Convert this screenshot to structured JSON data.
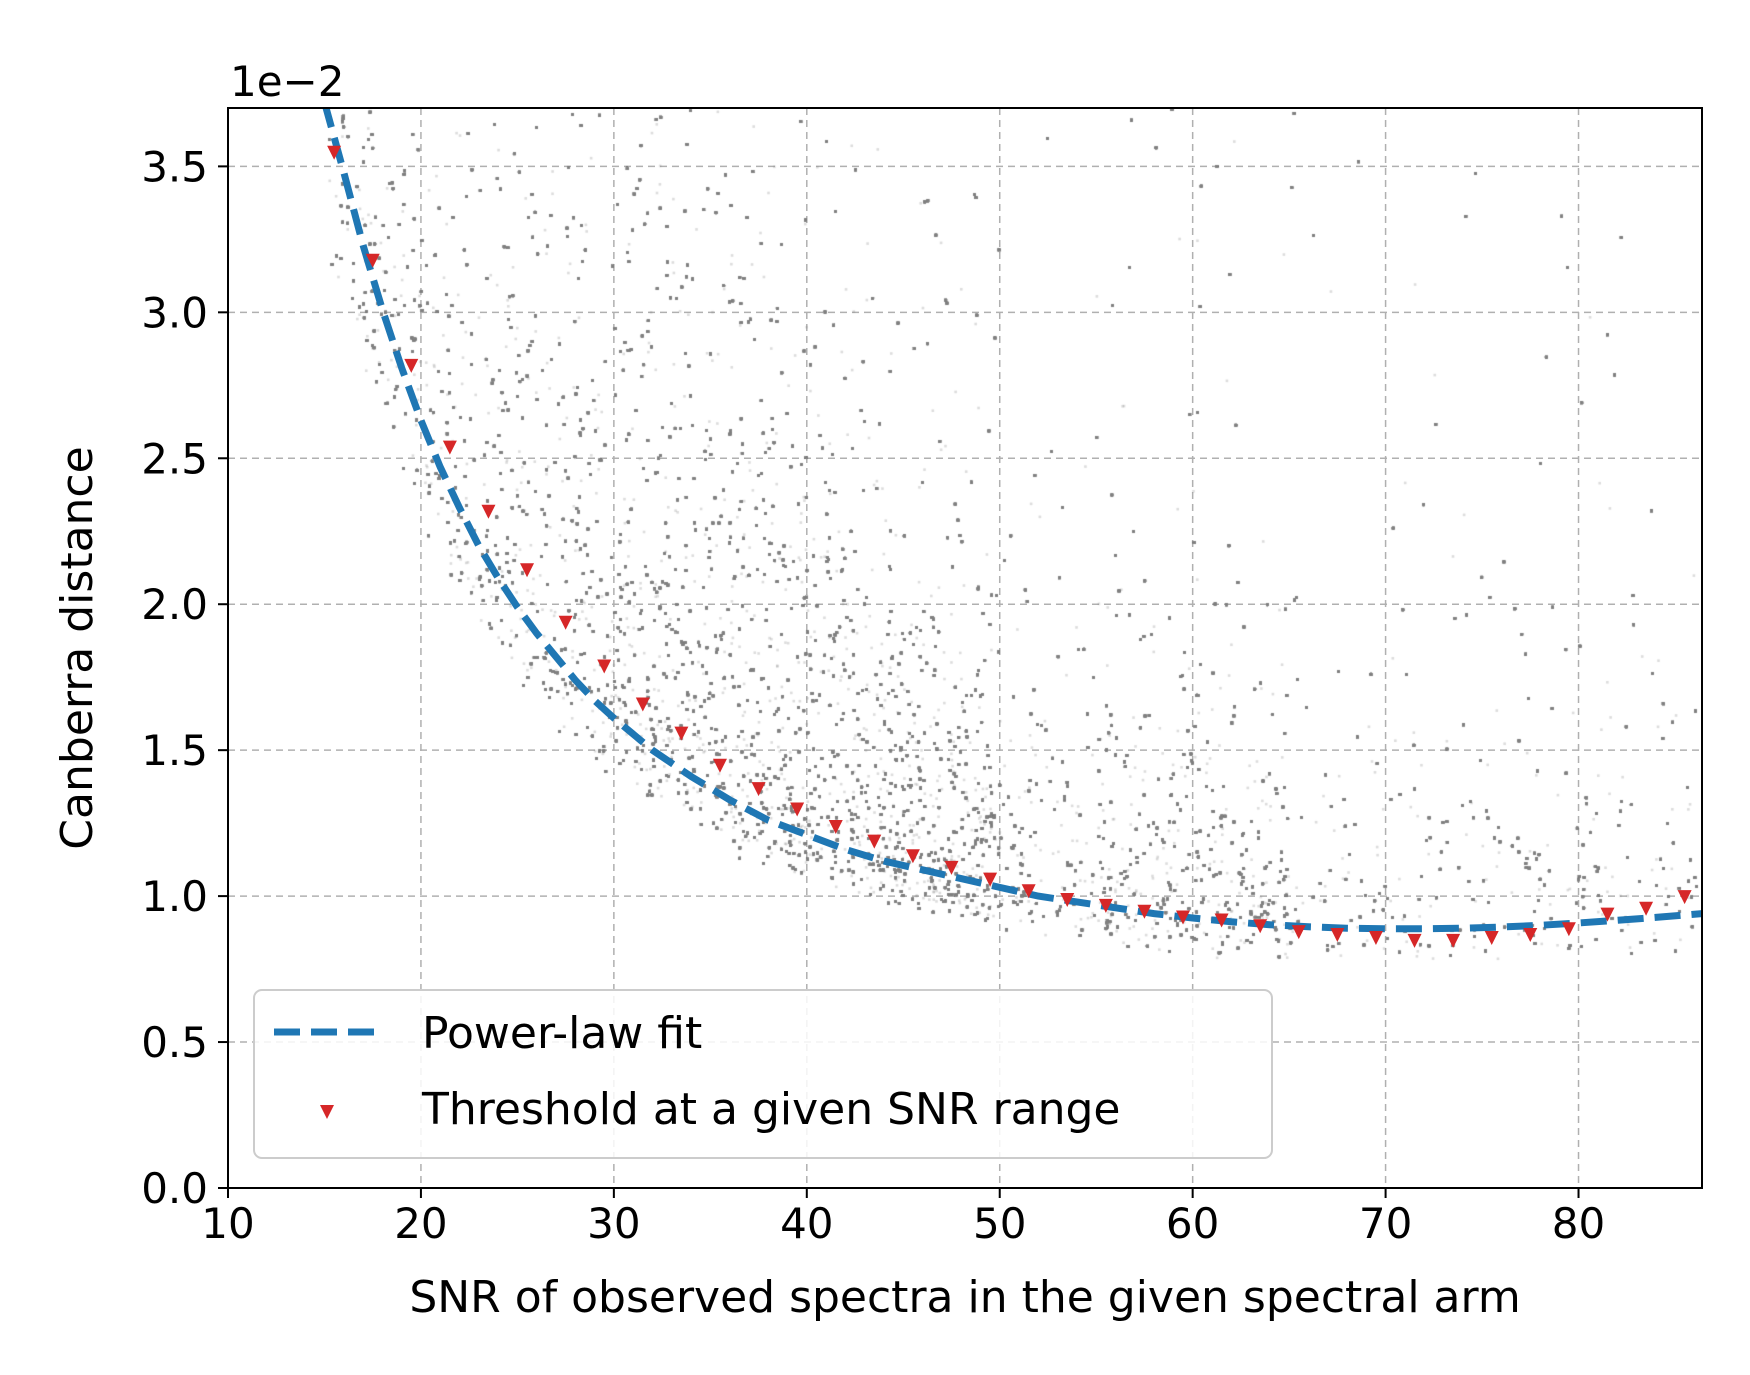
{
  "chart_data": {
    "type": "scatter",
    "title": "",
    "xlabel": "SNR of observed spectra in the given spectral arm",
    "ylabel": "Canberra distance",
    "y_offset_text": "1e−2",
    "xlim": [
      10,
      86.4
    ],
    "ylim": [
      0.0,
      3.7
    ],
    "xticks": [
      10,
      20,
      30,
      40,
      50,
      60,
      70,
      80
    ],
    "yticks": [
      0.0,
      0.5,
      1.0,
      1.5,
      2.0,
      2.5,
      3.0,
      3.5
    ],
    "ytick_labels": [
      "0.0",
      "0.5",
      "1.0",
      "1.5",
      "2.0",
      "2.5",
      "3.0",
      "3.5"
    ],
    "grid": true,
    "legend_position": "lower-left",
    "colors": {
      "scatter": "#808080",
      "fit": "#1f77b4",
      "threshold": "#d62728",
      "grid": "#b0b0b0"
    },
    "series": [
      {
        "name": "Power-law fit",
        "kind": "dashed-line",
        "x": [
          15.0,
          16.0,
          17.0,
          18.0,
          19.0,
          20.0,
          21.0,
          22.0,
          23.0,
          24.0,
          25.0,
          26.0,
          27.0,
          28.0,
          29.0,
          30.0,
          32.0,
          34.0,
          36.0,
          38.0,
          40.0,
          42.0,
          44.0,
          46.0,
          48.0,
          50.0,
          52.0,
          54.0,
          56.0,
          58.0,
          60.0,
          62.0,
          64.0,
          66.0,
          68.0,
          70.0,
          72.0,
          74.0,
          76.0,
          78.0,
          80.0,
          82.0,
          84.0,
          86.4
        ],
        "y": [
          3.72,
          3.48,
          3.23,
          3.01,
          2.81,
          2.63,
          2.47,
          2.33,
          2.2,
          2.09,
          1.99,
          1.9,
          1.82,
          1.74,
          1.67,
          1.61,
          1.5,
          1.41,
          1.33,
          1.26,
          1.21,
          1.16,
          1.12,
          1.09,
          1.06,
          1.03,
          1.0,
          0.98,
          0.96,
          0.94,
          0.925,
          0.912,
          0.902,
          0.895,
          0.89,
          0.888,
          0.888,
          0.89,
          0.894,
          0.9,
          0.908,
          0.917,
          0.927,
          0.94
        ]
      },
      {
        "name": "Threshold at a given SNR range",
        "kind": "markers",
        "x": [
          15.5,
          17.5,
          19.5,
          21.5,
          23.5,
          25.5,
          27.5,
          29.5,
          31.5,
          33.5,
          35.5,
          37.5,
          39.5,
          41.5,
          43.5,
          45.5,
          47.5,
          49.5,
          51.5,
          53.5,
          55.5,
          57.5,
          59.5,
          61.5,
          63.5,
          65.5,
          67.5,
          69.5,
          71.5,
          73.5,
          75.5,
          77.5,
          79.5,
          81.5,
          83.5,
          85.5
        ],
        "y": [
          3.55,
          3.18,
          2.82,
          2.54,
          2.32,
          2.12,
          1.94,
          1.79,
          1.66,
          1.56,
          1.45,
          1.37,
          1.3,
          1.24,
          1.19,
          1.14,
          1.1,
          1.06,
          1.02,
          0.99,
          0.97,
          0.95,
          0.93,
          0.92,
          0.9,
          0.88,
          0.87,
          0.86,
          0.85,
          0.85,
          0.86,
          0.87,
          0.89,
          0.94,
          0.96,
          1.0
        ]
      }
    ]
  }
}
